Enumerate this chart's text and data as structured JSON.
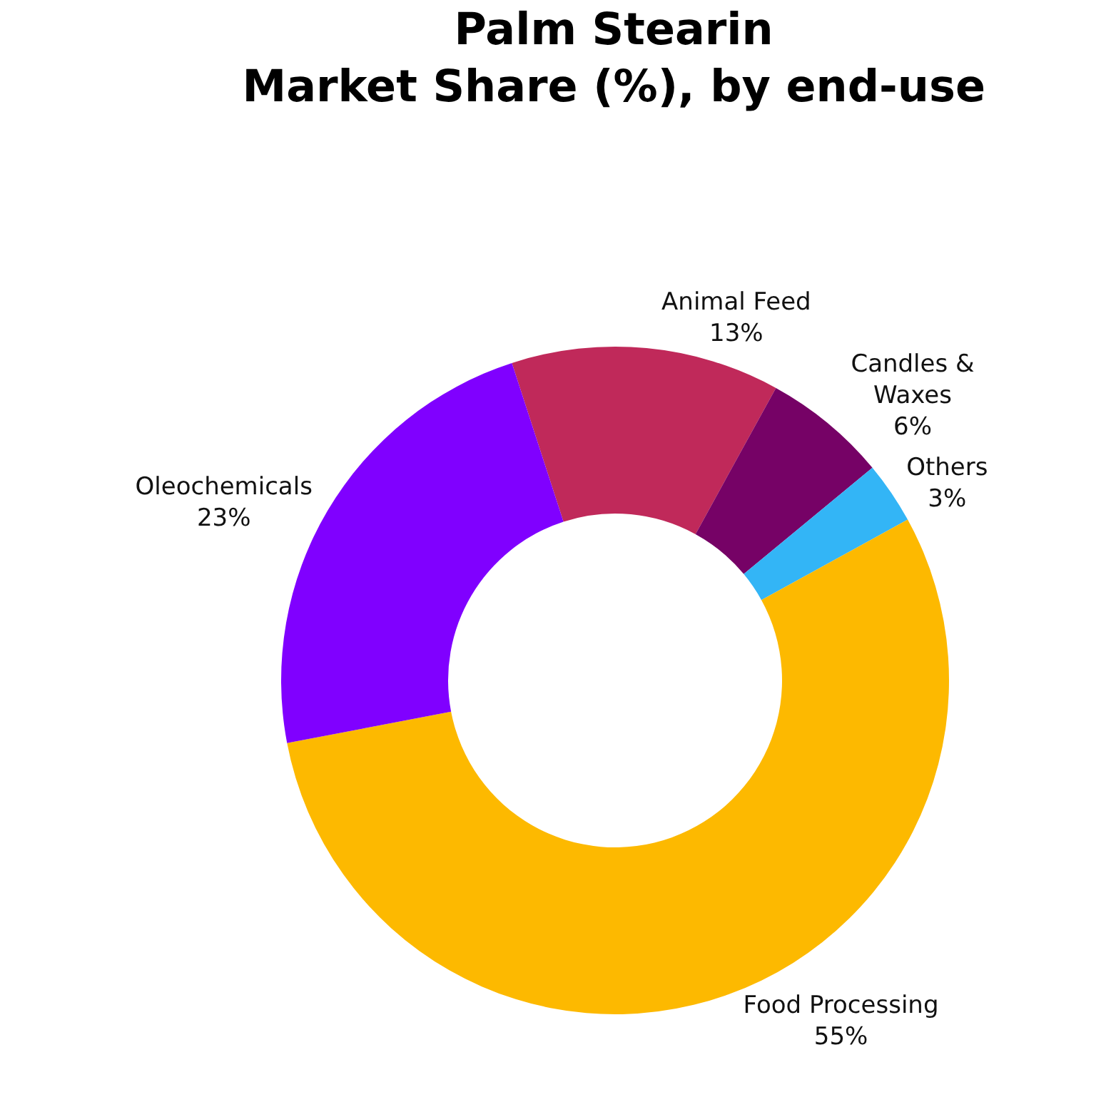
{
  "chart_data": {
    "type": "donut",
    "title": "Palm Stearin\nMarket Share (%), by end-use",
    "categories": [
      "Animal Feed",
      "Candles &\nWaxes",
      "Others",
      "Food Processing",
      "Oleochemicals"
    ],
    "values": [
      13,
      6,
      3,
      55,
      23
    ],
    "value_labels": [
      "13%",
      "6%",
      "3%",
      "55%",
      "23%"
    ],
    "colors": [
      "#c0295a",
      "#760266",
      "#33b5f6",
      "#fdb900",
      "#8000ff"
    ],
    "legend": false
  }
}
